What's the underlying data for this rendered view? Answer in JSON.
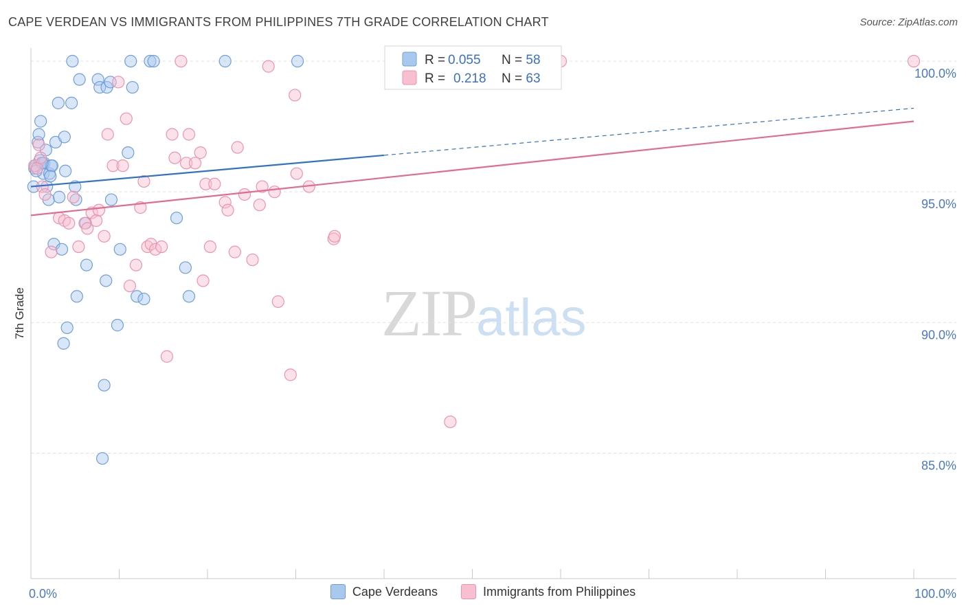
{
  "title": "CAPE VERDEAN VS IMMIGRANTS FROM PHILIPPINES 7TH GRADE CORRELATION CHART",
  "source": "Source: ZipAtlas.com",
  "watermark": {
    "zip": "ZIP",
    "atlas": "atlas"
  },
  "legend_stats": {
    "row1": {
      "r_label": "R = ",
      "r_value": "0.055",
      "n_label": "N = ",
      "n_value": "58"
    },
    "row2": {
      "r_label": "R = ",
      "r_value": "0.218",
      "n_label": "N = ",
      "n_value": "63"
    }
  },
  "bottom_legend": {
    "series1": "Cape Verdeans",
    "series2": "Immigrants from Philippines"
  },
  "colors": {
    "blue_fill": "#a9c8ee",
    "blue_stroke": "#6f9fdb",
    "blue_line": "#2f72c8",
    "pink_fill": "#f7bfd0",
    "pink_stroke": "#ee93ad",
    "pink_line": "#e36a93",
    "value_text": "#3a6fc4"
  },
  "chart_data": {
    "type": "scatter",
    "title": "CAPE VERDEAN VS IMMIGRANTS FROM PHILIPPINES 7TH GRADE CORRELATION CHART",
    "xlabel": "",
    "ylabel": "7th Grade",
    "xlim": [
      0,
      100
    ],
    "ylim": [
      80.2,
      100.5
    ],
    "x_tick_labels": [
      "0.0%",
      "100.0%"
    ],
    "y_ticks": [
      85,
      90,
      95,
      100
    ],
    "y_tick_labels": [
      "85.0%",
      "90.0%",
      "95.0%",
      "100.0%"
    ],
    "grid": true,
    "legend": "top-center",
    "series": [
      {
        "name": "Cape Verdeans",
        "r": 0.055,
        "n": 58,
        "trend": {
          "x0": 0,
          "y0": 95.2,
          "x1": 40,
          "y1": 96.4,
          "dashed_to_x": 100,
          "dashed_to_y": 98.2
        },
        "points": [
          [
            0.3,
            95.2
          ],
          [
            0.4,
            95.9
          ],
          [
            0.5,
            96.0
          ],
          [
            0.8,
            96.9
          ],
          [
            0.9,
            97.2
          ],
          [
            1.0,
            96.2
          ],
          [
            1.1,
            97.7
          ],
          [
            1.2,
            96.1
          ],
          [
            1.4,
            95.7
          ],
          [
            1.5,
            96.1
          ],
          [
            1.7,
            96.6
          ],
          [
            1.8,
            95.2
          ],
          [
            2.0,
            94.7
          ],
          [
            2.1,
            95.7
          ],
          [
            2.3,
            96.0
          ],
          [
            2.4,
            96.0
          ],
          [
            2.6,
            93.0
          ],
          [
            2.8,
            96.9
          ],
          [
            3.1,
            98.4
          ],
          [
            3.2,
            94.8
          ],
          [
            3.5,
            92.8
          ],
          [
            3.8,
            97.1
          ],
          [
            3.9,
            95.8
          ],
          [
            4.1,
            89.8
          ],
          [
            4.6,
            98.4
          ],
          [
            4.7,
            100.0
          ],
          [
            5.0,
            95.2
          ],
          [
            5.1,
            94.7
          ],
          [
            5.2,
            91.0
          ],
          [
            5.5,
            99.3
          ],
          [
            6.2,
            93.8
          ],
          [
            6.3,
            92.2
          ],
          [
            7.6,
            99.3
          ],
          [
            7.8,
            99.0
          ],
          [
            8.1,
            84.8
          ],
          [
            8.3,
            87.6
          ],
          [
            8.5,
            91.6
          ],
          [
            8.6,
            99.0
          ],
          [
            9.0,
            99.2
          ],
          [
            9.1,
            94.7
          ],
          [
            9.8,
            89.9
          ],
          [
            10.1,
            92.8
          ],
          [
            11.0,
            96.5
          ],
          [
            11.3,
            100.0
          ],
          [
            11.5,
            99.0
          ],
          [
            12.0,
            91.0
          ],
          [
            12.8,
            90.9
          ],
          [
            13.5,
            100.0
          ],
          [
            13.9,
            100.0
          ],
          [
            16.5,
            94.0
          ],
          [
            17.5,
            92.1
          ],
          [
            17.9,
            91.0
          ],
          [
            22.0,
            100.0
          ],
          [
            30.2,
            100.0
          ],
          [
            1.3,
            96.1
          ],
          [
            2.2,
            95.6
          ],
          [
            3.7,
            89.2
          ],
          [
            0.6,
            95.8
          ]
        ]
      },
      {
        "name": "Immigrants from Philippines",
        "r": 0.218,
        "n": 63,
        "trend": {
          "x0": 0,
          "y0": 94.1,
          "x1": 100,
          "y1": 97.7
        },
        "points": [
          [
            0.4,
            96.0
          ],
          [
            0.7,
            95.9
          ],
          [
            0.9,
            96.8
          ],
          [
            1.1,
            96.3
          ],
          [
            1.3,
            95.2
          ],
          [
            1.6,
            94.9
          ],
          [
            2.3,
            92.7
          ],
          [
            3.2,
            94.0
          ],
          [
            3.8,
            93.9
          ],
          [
            4.3,
            93.8
          ],
          [
            4.8,
            94.8
          ],
          [
            5.4,
            92.9
          ],
          [
            6.1,
            93.8
          ],
          [
            6.4,
            93.6
          ],
          [
            6.9,
            94.2
          ],
          [
            7.4,
            93.9
          ],
          [
            7.7,
            94.3
          ],
          [
            8.3,
            93.3
          ],
          [
            8.7,
            97.2
          ],
          [
            9.3,
            96.0
          ],
          [
            9.9,
            99.2
          ],
          [
            10.4,
            96.0
          ],
          [
            10.8,
            97.8
          ],
          [
            11.2,
            91.4
          ],
          [
            11.9,
            92.2
          ],
          [
            12.4,
            94.4
          ],
          [
            12.8,
            95.4
          ],
          [
            13.2,
            92.9
          ],
          [
            13.6,
            93.0
          ],
          [
            14.1,
            92.8
          ],
          [
            14.8,
            92.9
          ],
          [
            15.4,
            88.7
          ],
          [
            16.0,
            97.2
          ],
          [
            16.3,
            96.3
          ],
          [
            17.0,
            100.0
          ],
          [
            17.6,
            96.1
          ],
          [
            17.9,
            97.2
          ],
          [
            18.6,
            96.1
          ],
          [
            19.2,
            96.5
          ],
          [
            19.5,
            91.6
          ],
          [
            19.8,
            95.3
          ],
          [
            20.3,
            92.9
          ],
          [
            20.8,
            95.3
          ],
          [
            22.0,
            94.6
          ],
          [
            22.3,
            94.3
          ],
          [
            23.1,
            92.7
          ],
          [
            23.4,
            96.7
          ],
          [
            24.2,
            94.9
          ],
          [
            25.1,
            92.4
          ],
          [
            25.9,
            94.5
          ],
          [
            26.2,
            95.2
          ],
          [
            26.9,
            99.8
          ],
          [
            27.6,
            95.0
          ],
          [
            28.0,
            90.8
          ],
          [
            29.4,
            88.0
          ],
          [
            29.9,
            98.7
          ],
          [
            30.1,
            95.7
          ],
          [
            31.5,
            95.2
          ],
          [
            34.3,
            93.2
          ],
          [
            34.4,
            93.3
          ],
          [
            47.5,
            86.2
          ],
          [
            60.0,
            100.0
          ],
          [
            100.0,
            100.0
          ]
        ]
      }
    ]
  }
}
